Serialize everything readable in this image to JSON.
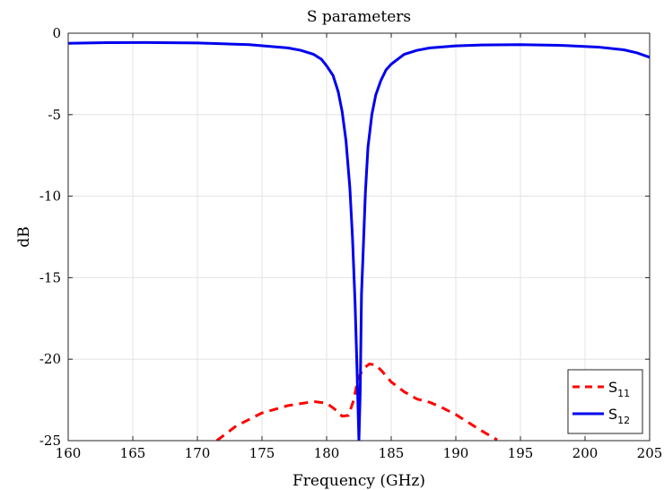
{
  "chart_data": {
    "type": "line",
    "title": "S parameters",
    "xlabel": "Frequency (GHz)",
    "ylabel": "dB",
    "xlim": [
      160,
      205
    ],
    "ylim": [
      -25,
      0
    ],
    "x_ticks": [
      160,
      165,
      170,
      175,
      180,
      185,
      190,
      195,
      200,
      205
    ],
    "x_tick_labels": [
      "160",
      "165",
      "170",
      "175",
      "180",
      "185",
      "190",
      "195",
      "200",
      "205"
    ],
    "y_ticks": [
      0,
      -5,
      -10,
      -15,
      -20,
      -25
    ],
    "y_tick_labels": [
      "0",
      "-5",
      "-10",
      "-15",
      "-20",
      "-25"
    ],
    "grid": true,
    "legend_position": "bottom-right",
    "series": [
      {
        "name": "S11",
        "legend_main": "S",
        "legend_sub": "11",
        "color": "#ff0000",
        "style": "dashed",
        "x": [
          171.5,
          173,
          175,
          177,
          179,
          180,
          180.6,
          181.2,
          181.7,
          182.1,
          182.4,
          182.8,
          183.3,
          183.8,
          184.3,
          185,
          186,
          187,
          188,
          189,
          190,
          191,
          192,
          193.2
        ],
        "y": [
          -25,
          -24.1,
          -23.3,
          -22.85,
          -22.6,
          -22.7,
          -23.05,
          -23.5,
          -23.45,
          -22.5,
          -21.3,
          -20.6,
          -20.3,
          -20.35,
          -20.75,
          -21.4,
          -22.0,
          -22.45,
          -22.65,
          -23.0,
          -23.4,
          -23.9,
          -24.4,
          -24.95
        ]
      },
      {
        "name": "S12",
        "legend_main": "S",
        "legend_sub": "12",
        "color": "#0000ee",
        "style": "solid",
        "x": [
          160,
          163,
          166,
          170,
          174,
          177,
          178,
          179,
          179.6,
          180,
          180.5,
          180.9,
          181.2,
          181.5,
          181.8,
          182.0,
          182.2,
          182.35,
          182.5,
          182.6,
          182.7,
          182.8,
          183.0,
          183.2,
          183.5,
          183.8,
          184.2,
          184.6,
          185,
          186,
          187,
          188,
          190,
          192,
          195,
          198,
          201,
          203,
          204,
          205
        ],
        "y": [
          -0.62,
          -0.58,
          -0.57,
          -0.6,
          -0.7,
          -0.9,
          -1.05,
          -1.3,
          -1.6,
          -2.0,
          -2.6,
          -3.6,
          -4.8,
          -6.6,
          -9.5,
          -12.5,
          -16.5,
          -20.5,
          -25,
          -22,
          -16,
          -14,
          -9.8,
          -7.0,
          -5.0,
          -3.8,
          -2.9,
          -2.25,
          -1.9,
          -1.3,
          -1.05,
          -0.9,
          -0.78,
          -0.72,
          -0.7,
          -0.74,
          -0.85,
          -1.02,
          -1.2,
          -1.48
        ]
      }
    ]
  }
}
